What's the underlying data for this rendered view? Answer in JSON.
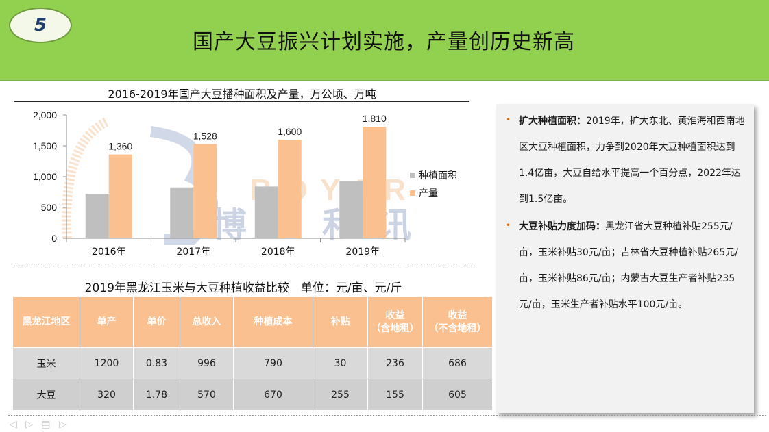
{
  "slide": {
    "number": "5",
    "title": "国产大豆振兴计划实施，产量创历史新高"
  },
  "chart": {
    "title": "2016-2019年国产大豆播种面积及产量，万公顷、万吨",
    "watermark_letters": "BOYAR",
    "watermark_cn": "博亚和讯"
  },
  "chart_data": {
    "type": "bar",
    "categories": [
      "2016年",
      "2017年",
      "2018年",
      "2019年"
    ],
    "series": [
      {
        "name": "种植面积",
        "values": [
          720,
          825,
          840,
          930
        ],
        "color": "#bfbfbf"
      },
      {
        "name": "产量",
        "values": [
          1360,
          1528,
          1600,
          1810
        ],
        "color": "#fac090",
        "labels": [
          "1,360",
          "1,528",
          "1,600",
          "1,810"
        ]
      }
    ],
    "ylim": [
      0,
      2000
    ],
    "yticks": [
      0,
      500,
      1000,
      1500,
      2000
    ],
    "ytick_labels": [
      "0",
      "500",
      "1,000",
      "1,500",
      "2,000"
    ],
    "legend_position": "right",
    "grid": false
  },
  "table": {
    "title": "2019年黑龙江玉米与大豆种植收益比较　单位：元/亩、元/斤",
    "headers": [
      "黑龙江地区",
      "单产",
      "单价",
      "总收入",
      "种植成本",
      "补贴",
      "收益\n（含地租）",
      "收益\n（不含地租）"
    ],
    "rows": [
      [
        "玉米",
        "1200",
        "0.83",
        "996",
        "790",
        "30",
        "236",
        "686"
      ],
      [
        "大豆",
        "320",
        "1.78",
        "570",
        "670",
        "255",
        "155",
        "605"
      ]
    ],
    "header_color": "#fac090",
    "row_color": "#d9d9d9"
  },
  "panel": {
    "bullet1_title": "扩大种植面积：",
    "bullet1_text": "2019年，扩大东北、黄淮海和西南地区大豆种植面积，力争到2020年大豆种植面积达到1.4亿亩，大豆自给水平提高一个百分点，2022年达到1.5亿亩。",
    "bullet2_title": "大豆补贴力度加码：",
    "bullet2_text": "黑龙江省大豆种植补贴255元/亩，玉米补贴30元/亩；吉林省大豆种植补贴265元/亩，玉米补贴86元/亩；内蒙古大豆生产者补贴235元/亩，玉米生产者补贴水平100元/亩。"
  },
  "footer": {
    "arrows": "◁ ▷ ▤ ▷"
  }
}
